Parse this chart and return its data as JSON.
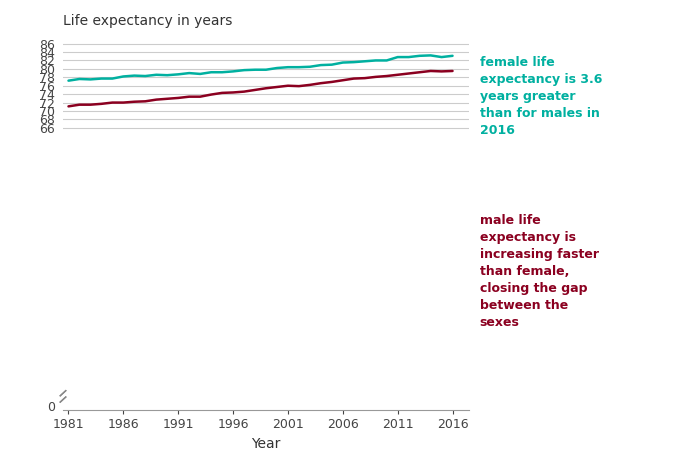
{
  "title": "Life expectancy in years",
  "xlabel": "Year",
  "female_color": "#00B0A0",
  "male_color": "#8B0020",
  "years": [
    1981,
    1982,
    1983,
    1984,
    1985,
    1986,
    1987,
    1988,
    1989,
    1990,
    1991,
    1992,
    1993,
    1994,
    1995,
    1996,
    1997,
    1998,
    1999,
    2000,
    2001,
    2002,
    2003,
    2004,
    2005,
    2006,
    2007,
    2008,
    2009,
    2010,
    2011,
    2012,
    2013,
    2014,
    2015,
    2016
  ],
  "female": [
    77.2,
    77.6,
    77.5,
    77.7,
    77.7,
    78.2,
    78.4,
    78.3,
    78.6,
    78.5,
    78.7,
    79.0,
    78.8,
    79.2,
    79.2,
    79.4,
    79.7,
    79.8,
    79.8,
    80.2,
    80.4,
    80.4,
    80.5,
    80.9,
    81.0,
    81.5,
    81.6,
    81.8,
    82.0,
    82.0,
    82.8,
    82.8,
    83.1,
    83.2,
    82.8,
    83.1
  ],
  "male": [
    71.1,
    71.5,
    71.5,
    71.7,
    72.0,
    72.0,
    72.2,
    72.3,
    72.7,
    72.9,
    73.1,
    73.4,
    73.4,
    73.9,
    74.3,
    74.4,
    74.6,
    75.0,
    75.4,
    75.7,
    76.0,
    75.9,
    76.2,
    76.6,
    76.9,
    77.3,
    77.7,
    77.8,
    78.1,
    78.3,
    78.6,
    78.9,
    79.2,
    79.5,
    79.4,
    79.5
  ],
  "annotation_female": "female life\nexpectancy is 3.6\nyears greater\nthan for males in\n2016",
  "annotation_male": "male life\nexpectancy is\nincreasing faster\nthan female,\nclosing the gap\nbetween the\nsexes",
  "ytick_positions": [
    0,
    64.5,
    66,
    68,
    70,
    72,
    74,
    76,
    78,
    80,
    82,
    84,
    86
  ],
  "ytick_labels": [
    "0",
    "",
    "66",
    "68",
    "70",
    "72",
    "74",
    "76",
    "78",
    "80",
    "82",
    "84",
    "86"
  ],
  "xticks": [
    1981,
    1986,
    1991,
    1996,
    2001,
    2006,
    2011,
    2016
  ],
  "ylim": [
    -1,
    87.5
  ],
  "xlim": [
    1980.5,
    2017.5
  ],
  "bg_color": "#FFFFFF",
  "grid_color": "#CCCCCC",
  "axis_color": "#999999"
}
